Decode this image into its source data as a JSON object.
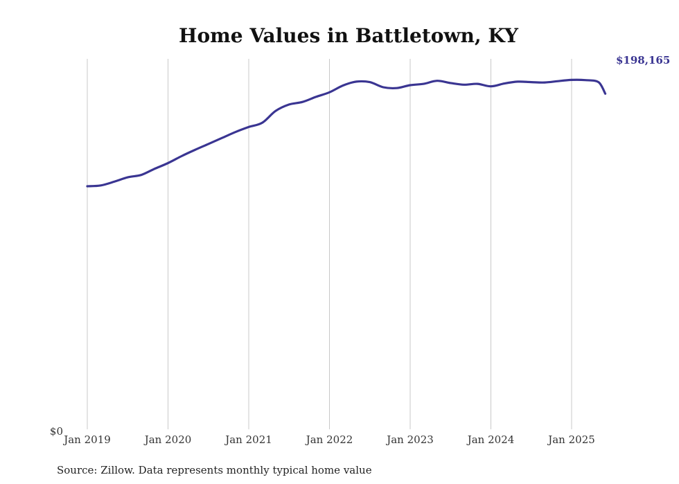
{
  "chart_data": {
    "type": "line",
    "title": "Home Values in Battletown, KY",
    "xlabel": "",
    "ylabel": "",
    "y_tick_label": "$0",
    "ylim": [
      0,
      210000
    ],
    "grid": "vertical",
    "line_color": "#3a3592",
    "end_label": "$198,165",
    "x_ticks": [
      {
        "label": "Jan 2019",
        "x": 2019.0
      },
      {
        "label": "Jan 2020",
        "x": 2020.0
      },
      {
        "label": "Jan 2021",
        "x": 2021.0
      },
      {
        "label": "Jan 2022",
        "x": 2022.0
      },
      {
        "label": "Jan 2023",
        "x": 2023.0
      },
      {
        "label": "Jan 2024",
        "x": 2024.0
      },
      {
        "label": "Jan 2025",
        "x": 2025.0
      }
    ],
    "series": [
      {
        "x": [
          2019.0,
          2019.167,
          2019.333,
          2019.5,
          2019.667,
          2019.833,
          2020.0,
          2020.167,
          2020.333,
          2020.5,
          2020.667,
          2020.833,
          2021.0,
          2021.167,
          2021.333,
          2021.5,
          2021.667,
          2021.833,
          2022.0,
          2022.167,
          2022.333,
          2022.5,
          2022.667,
          2022.833,
          2023.0,
          2023.167,
          2023.333,
          2023.5,
          2023.667,
          2023.833,
          2024.0,
          2024.167,
          2024.333,
          2024.5,
          2024.667,
          2024.833,
          2025.0,
          2025.167,
          2025.333,
          2025.417
        ],
        "values": [
          143500,
          144000,
          146200,
          148800,
          150200,
          153800,
          157200,
          161300,
          165000,
          168500,
          172000,
          175500,
          178500,
          181000,
          188000,
          191800,
          193300,
          196300,
          199000,
          203000,
          205300,
          205000,
          202000,
          201500,
          203200,
          204000,
          205800,
          204500,
          203500,
          204000,
          202500,
          204200,
          205300,
          205000,
          204800,
          205600,
          206300,
          206200,
          205000,
          198165
        ]
      }
    ]
  },
  "source_text": "Source: Zillow. Data represents monthly typical home value"
}
